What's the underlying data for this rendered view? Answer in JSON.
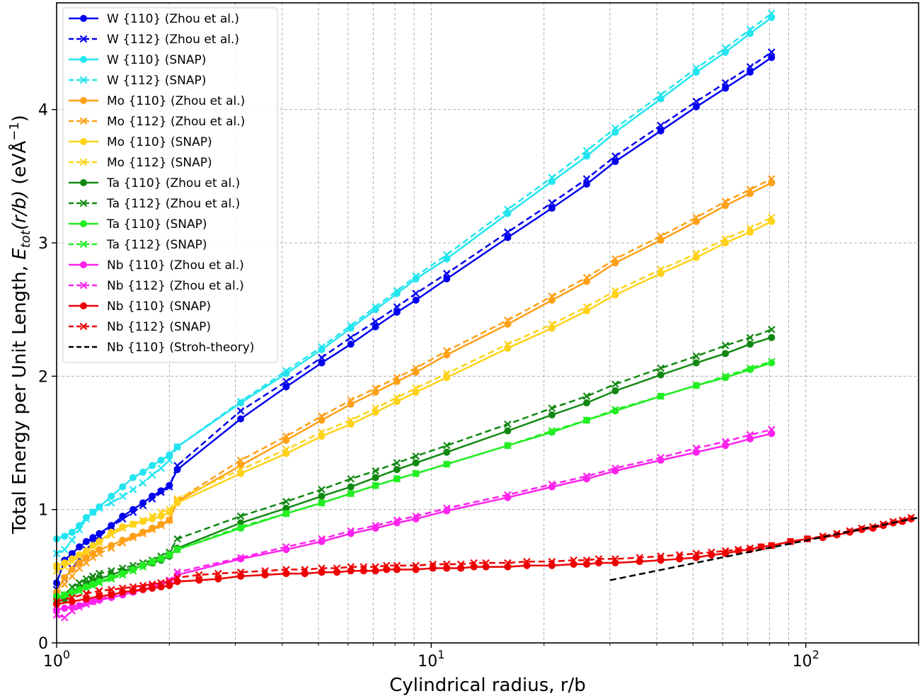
{
  "chart_data": {
    "type": "line",
    "title": "",
    "xlabel": "Cylindrical radius, r/b",
    "ylabel": {
      "prefix": "Total Energy per Unit Length, ",
      "symbol": "E",
      "subscript": "tot",
      "arg": "(r/b)",
      "units": " (eVÅ",
      "exponent": "−1",
      "close": ")"
    },
    "x_scale": "log",
    "xlim": [
      1,
      200
    ],
    "ylim": [
      0,
      4.8
    ],
    "x_ticks": [
      {
        "value": 1,
        "base": "10",
        "exp": "0"
      },
      {
        "value": 10,
        "base": "10",
        "exp": "1"
      },
      {
        "value": 100,
        "base": "10",
        "exp": "2"
      }
    ],
    "y_ticks": [
      {
        "value": 0,
        "label": "0"
      },
      {
        "value": 1,
        "label": "1"
      },
      {
        "value": 2,
        "label": "2"
      },
      {
        "value": 3,
        "label": "3"
      },
      {
        "value": 4,
        "label": "4"
      }
    ],
    "grid": true,
    "legend_position": "top-left",
    "x": [
      1.0,
      1.05,
      1.1,
      1.15,
      1.2,
      1.25,
      1.3,
      1.4,
      1.5,
      1.6,
      1.7,
      1.8,
      1.9,
      2.0,
      2.1,
      3.1,
      4.1,
      5.1,
      6.1,
      7.1,
      8.1,
      9.1,
      11,
      16,
      21,
      26,
      31,
      41,
      51,
      61,
      71,
      81
    ],
    "series": [
      {
        "name": "W {110} (Zhou et al.)",
        "color": "#0000ee",
        "linestyle": "solid",
        "marker": "circle",
        "values": [
          0.45,
          0.62,
          0.67,
          0.72,
          0.76,
          0.79,
          0.82,
          0.88,
          0.95,
          1.0,
          1.05,
          1.1,
          1.14,
          1.18,
          1.3,
          1.68,
          1.92,
          2.1,
          2.24,
          2.37,
          2.48,
          2.57,
          2.73,
          3.04,
          3.26,
          3.44,
          3.61,
          3.84,
          4.02,
          4.16,
          4.28,
          4.39
        ]
      },
      {
        "name": "W {112} (Zhou et al.)",
        "color": "#0000ee",
        "linestyle": "dashed",
        "marker": "x",
        "values": [
          0.4,
          0.48,
          0.56,
          0.63,
          0.7,
          0.75,
          0.8,
          0.87,
          0.93,
          0.98,
          1.03,
          1.08,
          1.13,
          1.17,
          1.33,
          1.74,
          1.96,
          2.14,
          2.29,
          2.41,
          2.52,
          2.62,
          2.77,
          3.08,
          3.3,
          3.48,
          3.65,
          3.88,
          4.06,
          4.2,
          4.32,
          4.43
        ]
      },
      {
        "name": "W {110} (SNAP)",
        "color": "#22e5f0",
        "linestyle": "solid",
        "marker": "circle",
        "values": [
          0.78,
          0.8,
          0.83,
          0.88,
          0.94,
          0.98,
          1.02,
          1.1,
          1.17,
          1.24,
          1.28,
          1.33,
          1.37,
          1.41,
          1.47,
          1.8,
          2.02,
          2.2,
          2.36,
          2.5,
          2.62,
          2.73,
          2.88,
          3.22,
          3.46,
          3.65,
          3.83,
          4.08,
          4.28,
          4.43,
          4.57,
          4.69
        ]
      },
      {
        "name": "W {112} (SNAP)",
        "color": "#22e5f0",
        "linestyle": "dashed",
        "marker": "x",
        "values": [
          0.67,
          0.7,
          0.77,
          0.85,
          0.93,
          0.98,
          1.01,
          1.05,
          1.1,
          1.15,
          1.2,
          1.26,
          1.31,
          1.37,
          1.47,
          1.81,
          2.04,
          2.22,
          2.38,
          2.52,
          2.64,
          2.75,
          2.91,
          3.25,
          3.49,
          3.69,
          3.86,
          4.11,
          4.31,
          4.46,
          4.6,
          4.72
        ]
      },
      {
        "name": "Mo {110} (Zhou et al.)",
        "color": "#ffa018",
        "linestyle": "solid",
        "marker": "circle",
        "values": [
          0.38,
          0.49,
          0.55,
          0.6,
          0.64,
          0.67,
          0.7,
          0.73,
          0.77,
          0.8,
          0.83,
          0.86,
          0.89,
          0.92,
          1.06,
          1.33,
          1.52,
          1.67,
          1.79,
          1.88,
          1.96,
          2.03,
          2.16,
          2.39,
          2.57,
          2.71,
          2.85,
          3.02,
          3.16,
          3.28,
          3.37,
          3.45
        ]
      },
      {
        "name": "Mo {112} (Zhou et al.)",
        "color": "#ffa018",
        "linestyle": "dashed",
        "marker": "x",
        "values": [
          0.36,
          0.44,
          0.5,
          0.56,
          0.6,
          0.64,
          0.67,
          0.71,
          0.75,
          0.79,
          0.82,
          0.85,
          0.88,
          0.92,
          1.07,
          1.37,
          1.55,
          1.7,
          1.82,
          1.91,
          1.99,
          2.06,
          2.19,
          2.42,
          2.6,
          2.74,
          2.88,
          3.05,
          3.19,
          3.31,
          3.4,
          3.48
        ]
      },
      {
        "name": "Mo {110} (SNAP)",
        "color": "#ffd21a",
        "linestyle": "solid",
        "marker": "circle",
        "values": [
          0.58,
          0.6,
          0.63,
          0.66,
          0.69,
          0.73,
          0.76,
          0.83,
          0.87,
          0.89,
          0.91,
          0.93,
          0.95,
          0.98,
          1.05,
          1.27,
          1.42,
          1.55,
          1.64,
          1.73,
          1.81,
          1.88,
          1.99,
          2.21,
          2.36,
          2.49,
          2.61,
          2.77,
          2.89,
          3.0,
          3.08,
          3.16
        ]
      },
      {
        "name": "Mo {112} (SNAP)",
        "color": "#ffd21a",
        "linestyle": "dashed",
        "marker": "x",
        "values": [
          0.54,
          0.57,
          0.61,
          0.65,
          0.68,
          0.72,
          0.75,
          0.81,
          0.86,
          0.89,
          0.92,
          0.95,
          0.98,
          1.0,
          1.08,
          1.3,
          1.45,
          1.58,
          1.67,
          1.76,
          1.84,
          1.91,
          2.02,
          2.24,
          2.39,
          2.52,
          2.64,
          2.8,
          2.92,
          3.03,
          3.11,
          3.19
        ]
      },
      {
        "name": "Ta {110} (Zhou et al.)",
        "color": "#118811",
        "linestyle": "solid",
        "marker": "circle",
        "values": [
          0.3,
          0.33,
          0.38,
          0.41,
          0.44,
          0.46,
          0.48,
          0.51,
          0.54,
          0.56,
          0.58,
          0.6,
          0.62,
          0.65,
          0.71,
          0.9,
          1.01,
          1.1,
          1.17,
          1.24,
          1.3,
          1.35,
          1.43,
          1.59,
          1.71,
          1.8,
          1.89,
          2.01,
          2.1,
          2.17,
          2.24,
          2.29
        ]
      },
      {
        "name": "Ta {112} (Zhou et al.)",
        "color": "#118811",
        "linestyle": "dashed",
        "marker": "x",
        "values": [
          0.32,
          0.36,
          0.42,
          0.45,
          0.48,
          0.5,
          0.52,
          0.54,
          0.56,
          0.58,
          0.6,
          0.62,
          0.65,
          0.68,
          0.78,
          0.95,
          1.06,
          1.15,
          1.23,
          1.29,
          1.35,
          1.4,
          1.48,
          1.64,
          1.76,
          1.85,
          1.94,
          2.06,
          2.15,
          2.23,
          2.29,
          2.35
        ]
      },
      {
        "name": "Ta {110} (SNAP)",
        "color": "#22ee22",
        "linestyle": "solid",
        "marker": "circle",
        "values": [
          0.35,
          0.36,
          0.38,
          0.4,
          0.42,
          0.44,
          0.46,
          0.49,
          0.52,
          0.55,
          0.58,
          0.61,
          0.63,
          0.66,
          0.7,
          0.86,
          0.97,
          1.05,
          1.12,
          1.18,
          1.23,
          1.27,
          1.34,
          1.48,
          1.58,
          1.67,
          1.74,
          1.85,
          1.93,
          1.99,
          2.05,
          2.1
        ]
      },
      {
        "name": "Ta {112} (SNAP)",
        "color": "#22ee22",
        "linestyle": "dashed",
        "marker": "x",
        "values": [
          0.34,
          0.35,
          0.37,
          0.39,
          0.41,
          0.43,
          0.45,
          0.48,
          0.51,
          0.54,
          0.57,
          0.6,
          0.63,
          0.66,
          0.7,
          0.87,
          0.97,
          1.05,
          1.12,
          1.18,
          1.23,
          1.27,
          1.34,
          1.48,
          1.59,
          1.67,
          1.75,
          1.85,
          1.93,
          2.0,
          2.06,
          2.11
        ]
      },
      {
        "name": "Nb {110} (Zhou et al.)",
        "color": "#ff22ee",
        "linestyle": "solid",
        "marker": "circle",
        "values": [
          0.25,
          0.26,
          0.27,
          0.28,
          0.3,
          0.31,
          0.32,
          0.34,
          0.36,
          0.38,
          0.4,
          0.42,
          0.44,
          0.46,
          0.51,
          0.63,
          0.7,
          0.76,
          0.82,
          0.86,
          0.9,
          0.93,
          0.99,
          1.09,
          1.17,
          1.23,
          1.29,
          1.37,
          1.43,
          1.48,
          1.53,
          1.57
        ]
      },
      {
        "name": "Nb {112} (Zhou et al.)",
        "color": "#ff22ee",
        "linestyle": "dashed",
        "marker": "x",
        "values": [
          0.21,
          0.19,
          0.24,
          0.27,
          0.29,
          0.31,
          0.33,
          0.35,
          0.37,
          0.39,
          0.41,
          0.43,
          0.45,
          0.47,
          0.53,
          0.64,
          0.72,
          0.78,
          0.84,
          0.88,
          0.92,
          0.95,
          1.01,
          1.11,
          1.19,
          1.25,
          1.31,
          1.39,
          1.46,
          1.51,
          1.56,
          1.6
        ]
      },
      {
        "name": "Nb {110} (SNAP)",
        "color": "#ee0000",
        "linestyle": "solid",
        "marker": "circle",
        "x": [
          1.0,
          1.1,
          1.2,
          1.3,
          1.4,
          1.5,
          1.6,
          1.7,
          1.8,
          1.9,
          2.0,
          2.1,
          2.4,
          2.7,
          3.1,
          3.6,
          4.1,
          4.6,
          5.1,
          5.6,
          6.1,
          6.6,
          7.1,
          7.6,
          8.1,
          9.1,
          10.1,
          11,
          12,
          13,
          14,
          16,
          18,
          21,
          24,
          26,
          28,
          31,
          36,
          41,
          46,
          51,
          56,
          61,
          66,
          71,
          76,
          81,
          91,
          101,
          111,
          121,
          131,
          141,
          151,
          161,
          171,
          181,
          191
        ],
        "values": [
          0.29,
          0.31,
          0.33,
          0.35,
          0.36,
          0.38,
          0.39,
          0.4,
          0.41,
          0.42,
          0.43,
          0.46,
          0.47,
          0.48,
          0.5,
          0.51,
          0.52,
          0.52,
          0.53,
          0.53,
          0.54,
          0.54,
          0.54,
          0.55,
          0.55,
          0.55,
          0.56,
          0.56,
          0.56,
          0.57,
          0.57,
          0.57,
          0.58,
          0.58,
          0.59,
          0.59,
          0.6,
          0.6,
          0.61,
          0.62,
          0.63,
          0.64,
          0.66,
          0.67,
          0.69,
          0.7,
          0.72,
          0.73,
          0.76,
          0.78,
          0.79,
          0.81,
          0.83,
          0.85,
          0.86,
          0.88,
          0.9,
          0.91,
          0.93
        ]
      },
      {
        "name": "Nb {112} (SNAP)",
        "color": "#ee0000",
        "linestyle": "dashed",
        "marker": "x",
        "x": [
          1.0,
          1.1,
          1.2,
          1.3,
          1.4,
          1.5,
          1.6,
          1.7,
          1.8,
          1.9,
          2.0,
          2.1,
          2.4,
          2.7,
          3.1,
          3.6,
          4.1,
          4.6,
          5.1,
          5.6,
          6.1,
          6.6,
          7.1,
          7.6,
          8.1,
          9.1,
          10.1,
          11,
          12,
          13,
          14,
          16,
          18,
          21,
          24,
          26,
          28,
          31,
          36,
          41,
          46,
          51,
          56,
          61,
          66,
          71,
          76,
          81,
          91,
          101,
          111,
          121,
          131,
          141,
          151,
          161,
          171,
          181,
          191
        ],
        "values": [
          0.31,
          0.34,
          0.37,
          0.39,
          0.4,
          0.41,
          0.42,
          0.43,
          0.44,
          0.45,
          0.46,
          0.49,
          0.51,
          0.52,
          0.53,
          0.54,
          0.55,
          0.55,
          0.56,
          0.56,
          0.57,
          0.57,
          0.57,
          0.58,
          0.58,
          0.58,
          0.59,
          0.59,
          0.59,
          0.6,
          0.6,
          0.6,
          0.61,
          0.61,
          0.62,
          0.62,
          0.63,
          0.63,
          0.64,
          0.65,
          0.66,
          0.67,
          0.68,
          0.69,
          0.7,
          0.71,
          0.72,
          0.73,
          0.76,
          0.78,
          0.8,
          0.82,
          0.84,
          0.86,
          0.87,
          0.89,
          0.91,
          0.92,
          0.94
        ]
      },
      {
        "name": "Nb {110} (Stroh-theory)",
        "color": "#000000",
        "linestyle": "dashed",
        "marker": "none",
        "x": [
          30,
          200
        ],
        "values": [
          0.47,
          0.94
        ]
      }
    ]
  }
}
